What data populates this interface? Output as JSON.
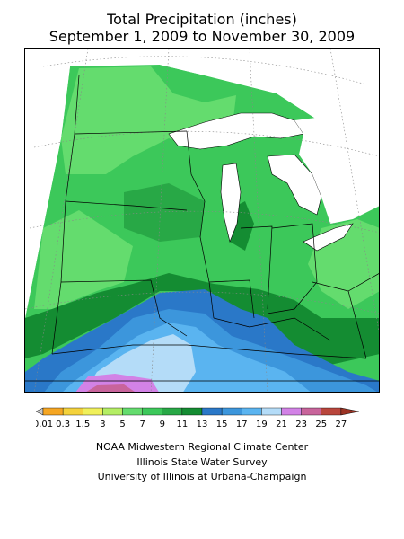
{
  "title": {
    "line1": "Total Precipitation (inches)",
    "line2": "September 1, 2009 to November 30, 2009"
  },
  "legend": {
    "labels": [
      "0.01",
      "0.3",
      "1.5",
      "3",
      "5",
      "7",
      "9",
      "11",
      "13",
      "15",
      "17",
      "19",
      "21",
      "23",
      "25",
      "27"
    ],
    "colors": [
      "#c8c8c8",
      "#f5a623",
      "#f4d23c",
      "#f0f05a",
      "#b4ee64",
      "#64dc6e",
      "#3cc85a",
      "#28a846",
      "#148c32",
      "#2a78c8",
      "#3c96dc",
      "#5ab4f0",
      "#b4dcf8",
      "#d282e6",
      "#c8649b",
      "#b9463c",
      "#9b3223"
    ]
  },
  "credits": {
    "line1": "NOAA Midwestern Regional Climate Center",
    "line2": "Illinois State Water Survey",
    "line3": "University of Illinois at Urbana-Champaign"
  }
}
